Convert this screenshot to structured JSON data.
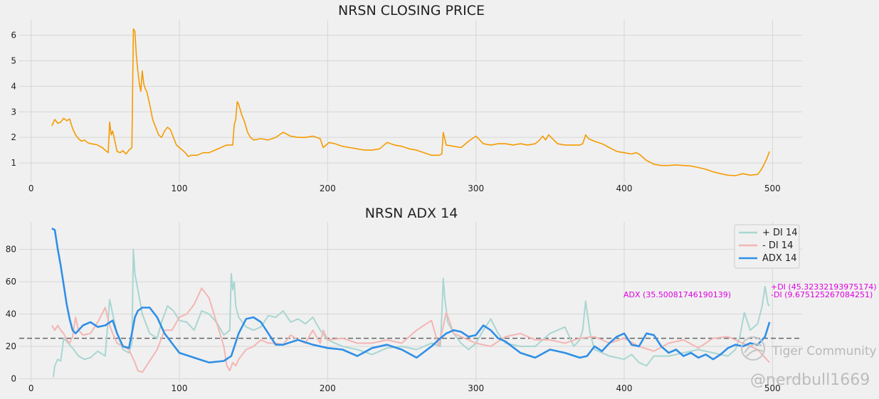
{
  "chart_data": [
    {
      "type": "line",
      "title": "NRSN CLOSING PRICE",
      "xlabel": "",
      "ylabel": "",
      "xlim": [
        -8,
        520
      ],
      "ylim": [
        0.25,
        6.6
      ],
      "xticks": [
        0,
        100,
        200,
        300,
        400,
        500
      ],
      "yticks": [
        1,
        2,
        3,
        4,
        5,
        6
      ],
      "grid": true,
      "series": [
        {
          "color": "#f59b00",
          "x": [
            14,
            16,
            18,
            20,
            22,
            24,
            26,
            28,
            30,
            32,
            34,
            36,
            38,
            40,
            44,
            48,
            50,
            52,
            53,
            54,
            55,
            56,
            58,
            60,
            62,
            64,
            66,
            68,
            69,
            70,
            71,
            72,
            73,
            74,
            75,
            76,
            77,
            78,
            80,
            82,
            84,
            86,
            88,
            90,
            92,
            94,
            96,
            98,
            100,
            104,
            106,
            108,
            112,
            116,
            120,
            124,
            128,
            132,
            136,
            137,
            138,
            139,
            140,
            142,
            144,
            146,
            148,
            150,
            155,
            160,
            165,
            170,
            175,
            180,
            185,
            190,
            195,
            197,
            199,
            201,
            205,
            210,
            215,
            220,
            225,
            230,
            235,
            240,
            245,
            250,
            255,
            260,
            265,
            270,
            275,
            277,
            278,
            280,
            285,
            290,
            295,
            300,
            305,
            310,
            315,
            320,
            325,
            330,
            335,
            340,
            343,
            345,
            347,
            349,
            355,
            360,
            365,
            370,
            372,
            374,
            376,
            380,
            385,
            390,
            395,
            400,
            405,
            408,
            410,
            412,
            415,
            420,
            425,
            430,
            435,
            440,
            445,
            450,
            455,
            460,
            465,
            470,
            475,
            480,
            485,
            490,
            492,
            494,
            496,
            498
          ],
          "values": [
            2.45,
            2.7,
            2.55,
            2.6,
            2.75,
            2.65,
            2.72,
            2.35,
            2.1,
            1.95,
            1.85,
            1.9,
            1.8,
            1.75,
            1.72,
            1.6,
            1.5,
            1.4,
            2.6,
            2.1,
            2.25,
            2.0,
            1.45,
            1.4,
            1.48,
            1.35,
            1.5,
            1.6,
            6.25,
            6.15,
            5.2,
            4.6,
            4.1,
            3.8,
            4.6,
            4.1,
            3.9,
            3.8,
            3.3,
            2.7,
            2.4,
            2.1,
            2.0,
            2.25,
            2.4,
            2.3,
            2.0,
            1.7,
            1.6,
            1.4,
            1.25,
            1.3,
            1.3,
            1.4,
            1.4,
            1.5,
            1.6,
            1.7,
            1.7,
            2.5,
            2.7,
            3.4,
            3.3,
            2.9,
            2.6,
            2.2,
            2.0,
            1.9,
            1.95,
            1.9,
            2.0,
            2.2,
            2.05,
            2.0,
            2.0,
            2.05,
            1.95,
            1.6,
            1.7,
            1.8,
            1.75,
            1.65,
            1.6,
            1.55,
            1.5,
            1.5,
            1.55,
            1.8,
            1.7,
            1.65,
            1.55,
            1.5,
            1.4,
            1.3,
            1.3,
            1.35,
            2.2,
            1.7,
            1.65,
            1.6,
            1.85,
            2.05,
            1.75,
            1.7,
            1.75,
            1.75,
            1.7,
            1.75,
            1.7,
            1.75,
            1.9,
            2.05,
            1.9,
            2.1,
            1.75,
            1.7,
            1.7,
            1.7,
            1.75,
            2.1,
            1.95,
            1.85,
            1.75,
            1.6,
            1.45,
            1.4,
            1.35,
            1.4,
            1.35,
            1.25,
            1.1,
            0.95,
            0.9,
            0.9,
            0.92,
            0.9,
            0.88,
            0.82,
            0.75,
            0.65,
            0.58,
            0.52,
            0.5,
            0.58,
            0.52,
            0.55,
            0.7,
            0.9,
            1.15,
            1.45
          ]
        }
      ]
    },
    {
      "type": "line",
      "title": "NRSN ADX 14",
      "xlabel": "",
      "ylabel": "",
      "xlim": [
        -8,
        520
      ],
      "ylim": [
        -2,
        97
      ],
      "xticks": [
        0,
        100,
        200,
        300,
        400,
        500
      ],
      "yticks": [
        0,
        20,
        40,
        60,
        80
      ],
      "grid": true,
      "legend": "top-right",
      "reference_line": {
        "y": 25,
        "style": "dashed",
        "color": "#666666"
      },
      "series": [
        {
          "name": "+ DI 14",
          "color": "#a9d6d1",
          "x": [
            15,
            16,
            18,
            20,
            22,
            25,
            28,
            32,
            36,
            40,
            45,
            50,
            53,
            55,
            58,
            62,
            66,
            68,
            69,
            70,
            72,
            75,
            80,
            85,
            88,
            92,
            96,
            100,
            105,
            110,
            115,
            120,
            125,
            130,
            134,
            135,
            136,
            137,
            138,
            140,
            145,
            150,
            155,
            160,
            165,
            170,
            175,
            180,
            185,
            190,
            195,
            200,
            210,
            220,
            230,
            240,
            250,
            260,
            270,
            276,
            277,
            278,
            279,
            281,
            285,
            290,
            295,
            300,
            305,
            310,
            315,
            320,
            330,
            340,
            350,
            360,
            366,
            370,
            372,
            374,
            377,
            380,
            390,
            400,
            405,
            410,
            415,
            420,
            430,
            440,
            450,
            460,
            470,
            475,
            478,
            481,
            485,
            490,
            493,
            495,
            497,
            498
          ],
          "values": [
            1,
            8,
            12,
            11,
            25,
            22,
            19,
            14,
            12,
            13,
            17,
            14,
            49,
            40,
            28,
            18,
            16,
            22,
            80,
            65,
            55,
            40,
            28,
            25,
            35,
            45,
            42,
            36,
            35,
            30,
            42,
            40,
            35,
            27,
            30,
            65,
            55,
            60,
            45,
            38,
            32,
            30,
            32,
            39,
            38,
            42,
            35,
            37,
            34,
            38,
            30,
            24,
            20,
            18,
            15,
            19,
            20,
            18,
            22,
            20,
            40,
            62,
            50,
            35,
            28,
            22,
            18,
            22,
            30,
            37,
            28,
            22,
            20,
            20,
            28,
            32,
            20,
            24,
            30,
            48,
            28,
            18,
            14,
            12,
            15,
            10,
            8,
            14,
            14,
            16,
            18,
            16,
            14,
            18,
            26,
            41,
            30,
            34,
            45,
            57,
            46,
            45
          ]
        },
        {
          "name": "- DI 14",
          "color": "#f3b6b3",
          "x": [
            14,
            16,
            18,
            20,
            22,
            24,
            26,
            28,
            30,
            32,
            35,
            40,
            45,
            50,
            53,
            55,
            58,
            62,
            66,
            68,
            70,
            72,
            75,
            80,
            85,
            90,
            95,
            100,
            105,
            110,
            115,
            120,
            125,
            130,
            132,
            134,
            136,
            138,
            140,
            145,
            150,
            155,
            160,
            165,
            170,
            175,
            180,
            185,
            190,
            195,
            197,
            200,
            210,
            220,
            230,
            240,
            250,
            260,
            270,
            275,
            280,
            282,
            285,
            290,
            300,
            310,
            320,
            330,
            340,
            350,
            360,
            370,
            380,
            390,
            400,
            410,
            420,
            430,
            440,
            450,
            460,
            470,
            480,
            490,
            495,
            498
          ],
          "values": [
            33,
            30,
            33,
            30,
            28,
            24,
            22,
            26,
            38,
            30,
            27,
            28,
            35,
            44,
            33,
            28,
            22,
            20,
            18,
            14,
            10,
            5,
            4,
            11,
            18,
            30,
            30,
            38,
            40,
            46,
            56,
            50,
            35,
            20,
            8,
            5,
            10,
            8,
            12,
            18,
            20,
            24,
            22,
            22,
            21,
            27,
            24,
            22,
            30,
            22,
            30,
            24,
            25,
            22,
            22,
            24,
            22,
            30,
            36,
            20,
            41,
            36,
            28,
            26,
            22,
            20,
            26,
            28,
            24,
            24,
            22,
            25,
            26,
            22,
            25,
            20,
            17,
            22,
            24,
            19,
            25,
            26,
            22,
            18,
            13,
            10
          ]
        },
        {
          "name": "ADX 14",
          "color": "#2f8fe6",
          "x": [
            14,
            16,
            18,
            20,
            22,
            24,
            26,
            28,
            30,
            35,
            40,
            45,
            50,
            55,
            58,
            62,
            66,
            68,
            70,
            72,
            75,
            80,
            85,
            90,
            95,
            100,
            110,
            120,
            130,
            135,
            140,
            145,
            150,
            155,
            160,
            165,
            170,
            180,
            190,
            200,
            210,
            220,
            230,
            240,
            250,
            260,
            270,
            276,
            280,
            285,
            290,
            295,
            300,
            305,
            310,
            315,
            320,
            330,
            340,
            350,
            360,
            370,
            375,
            380,
            385,
            390,
            395,
            400,
            405,
            410,
            415,
            420,
            425,
            430,
            435,
            440,
            445,
            450,
            455,
            460,
            465,
            470,
            475,
            480,
            485,
            490,
            495,
            498
          ],
          "values": [
            93,
            92,
            80,
            70,
            58,
            46,
            37,
            30,
            28,
            33,
            35,
            32,
            33,
            36,
            28,
            20,
            19,
            28,
            38,
            42,
            44,
            44,
            38,
            28,
            22,
            16,
            13,
            10,
            11,
            14,
            28,
            37,
            38,
            35,
            28,
            21,
            21,
            24,
            21,
            19,
            18,
            14,
            19,
            21,
            18,
            13,
            20,
            25,
            28,
            30,
            29,
            26,
            27,
            33,
            30,
            25,
            23,
            16,
            13,
            18,
            16,
            13,
            14,
            20,
            17,
            22,
            26,
            28,
            21,
            20,
            28,
            27,
            20,
            16,
            18,
            14,
            16,
            13,
            15,
            12,
            15,
            19,
            21,
            20,
            22,
            21,
            26,
            35
          ]
        }
      ],
      "annotations": [
        {
          "text": "ADX (35.50081746190139)",
          "color": "#e000e0"
        },
        {
          "text": "+DI (45.32332193975174)",
          "color": "#e000e0"
        },
        {
          "text": "-DI (9.675125267084251)",
          "color": "#e000e0"
        }
      ]
    }
  ],
  "watermark": {
    "brand": "Tiger Community",
    "handle": "@nerdbull1669"
  }
}
